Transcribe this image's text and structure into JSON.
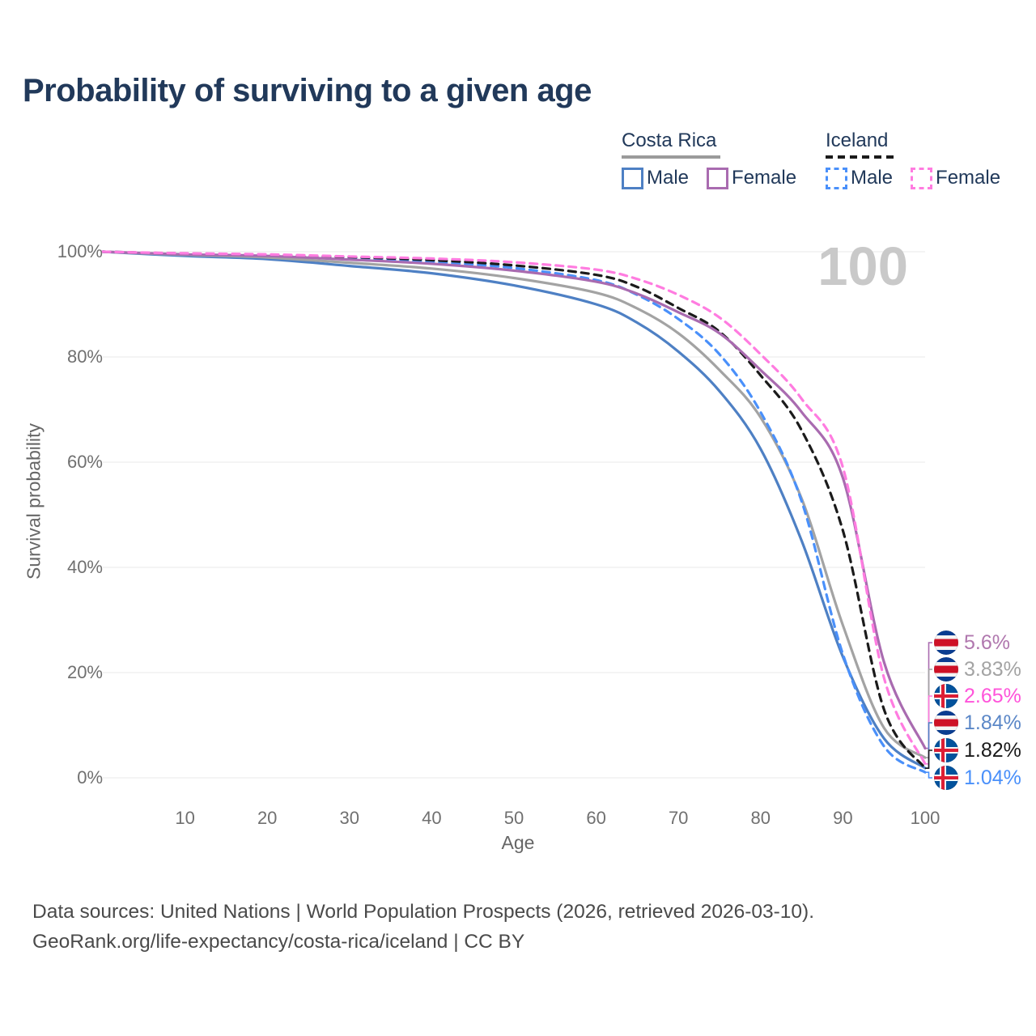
{
  "title": "Probability of surviving to a given age",
  "watermark": "100",
  "legend": {
    "groups": [
      {
        "id": "costa-rica",
        "label": "Costa Rica",
        "rule_style": "solid",
        "rule_color": "#9b9b9b",
        "items": [
          {
            "id": "cr-male",
            "label": "Male",
            "color": "#4e80c4",
            "dashed": false
          },
          {
            "id": "cr-female",
            "label": "Female",
            "color": "#a96bb0",
            "dashed": false
          }
        ]
      },
      {
        "id": "iceland",
        "label": "Iceland",
        "rule_style": "dashed",
        "rule_color": "#1b1b1b",
        "items": [
          {
            "id": "is-male",
            "label": "Male",
            "color": "#4a90fa",
            "dashed": true
          },
          {
            "id": "is-female",
            "label": "Female",
            "color": "#ff7ce0",
            "dashed": true
          }
        ]
      }
    ]
  },
  "chart_data": {
    "type": "line",
    "title": "Probability of surviving to a given age",
    "xlabel": "Age",
    "ylabel": "Survival probability",
    "xlim": [
      0,
      100
    ],
    "ylim": [
      0,
      100
    ],
    "grid": true,
    "x_ticks": [
      10,
      20,
      30,
      40,
      50,
      60,
      70,
      80,
      90,
      100
    ],
    "y_ticks": [
      100,
      80,
      60,
      40,
      20,
      0
    ],
    "y_tick_labels": [
      "100%",
      "80%",
      "60%",
      "40%",
      "20%",
      "0%"
    ],
    "ages": [
      0,
      10,
      20,
      30,
      40,
      50,
      60,
      65,
      70,
      75,
      80,
      85,
      90,
      95,
      100
    ],
    "series": [
      {
        "name": "Costa Rica Male",
        "country": "costa-rica",
        "sex": "male",
        "style": "solid",
        "color": "#4e80c4",
        "values": [
          100,
          99.2,
          98.6,
          97.3,
          95.9,
          93.6,
          90.0,
          86.5,
          81.0,
          73.5,
          62.5,
          45.0,
          23.0,
          7.5,
          1.84
        ],
        "end_value_label": "1.84%"
      },
      {
        "name": "Costa Rica Both sexes",
        "country": "costa-rica",
        "sex": "both",
        "style": "solid",
        "color": "#a3a3a3",
        "values": [
          100,
          99.4,
          98.9,
          97.9,
          96.8,
          95.0,
          92.2,
          89.2,
          84.5,
          77.5,
          68.5,
          53.0,
          29.0,
          9.5,
          3.83
        ],
        "end_value_label": "3.83%"
      },
      {
        "name": "Iceland Male",
        "country": "iceland",
        "sex": "male",
        "style": "dashed",
        "color": "#4a90fa",
        "values": [
          100,
          99.6,
          99.3,
          98.7,
          98.1,
          96.9,
          94.6,
          91.8,
          87.2,
          80.5,
          69.5,
          52.5,
          23.5,
          6.0,
          1.04
        ],
        "end_value_label": "1.04%"
      },
      {
        "name": "Iceland Both sexes",
        "country": "iceland",
        "sex": "both",
        "style": "dashed",
        "color": "#1b1b1b",
        "values": [
          100,
          99.65,
          99.4,
          99.0,
          98.4,
          97.4,
          95.6,
          93.3,
          89.3,
          84.8,
          76.5,
          66.0,
          47.0,
          13.0,
          1.82
        ],
        "end_value_label": "1.82%"
      },
      {
        "name": "Costa Rica Female",
        "country": "costa-rica",
        "sex": "female",
        "style": "solid",
        "color": "#a96bb0",
        "values": [
          100,
          99.5,
          99.2,
          98.5,
          97.7,
          96.4,
          94.3,
          92.0,
          88.5,
          84.5,
          77.5,
          69.5,
          57.0,
          22.0,
          5.6
        ],
        "end_value_label": "5.6%"
      },
      {
        "name": "Iceland Female",
        "country": "iceland",
        "sex": "female",
        "style": "dashed",
        "color": "#ff7ce0",
        "values": [
          100,
          99.7,
          99.5,
          99.1,
          98.7,
          98.0,
          96.6,
          94.8,
          91.8,
          87.5,
          80.5,
          72.0,
          59.0,
          19.0,
          2.65
        ],
        "end_value_label": "2.65%"
      }
    ],
    "legend_position": "top-right"
  },
  "end_labels": [
    {
      "flag": "costa-rica",
      "text": "5.6%",
      "color": "#b077ae",
      "series": "Costa Rica Female"
    },
    {
      "flag": "costa-rica",
      "text": "3.83%",
      "color": "#a3a3a3",
      "series": "Costa Rica Both sexes"
    },
    {
      "flag": "iceland",
      "text": "2.65%",
      "color": "#ff54da",
      "series": "Iceland Female"
    },
    {
      "flag": "costa-rica",
      "text": "1.84%",
      "color": "#5b87c7",
      "series": "Costa Rica Male"
    },
    {
      "flag": "iceland",
      "text": "1.82%",
      "color": "#1a1a1a",
      "series": "Iceland Both sexes"
    },
    {
      "flag": "iceland",
      "text": "1.04%",
      "color": "#4a90fa",
      "series": "Iceland Male"
    }
  ],
  "source": {
    "line1": "Data sources: United Nations | World Population Prospects (2026, retrieved 2026-03-10).",
    "line2": "GeoRank.org/life-expectancy/costa-rica/iceland | CC BY"
  }
}
